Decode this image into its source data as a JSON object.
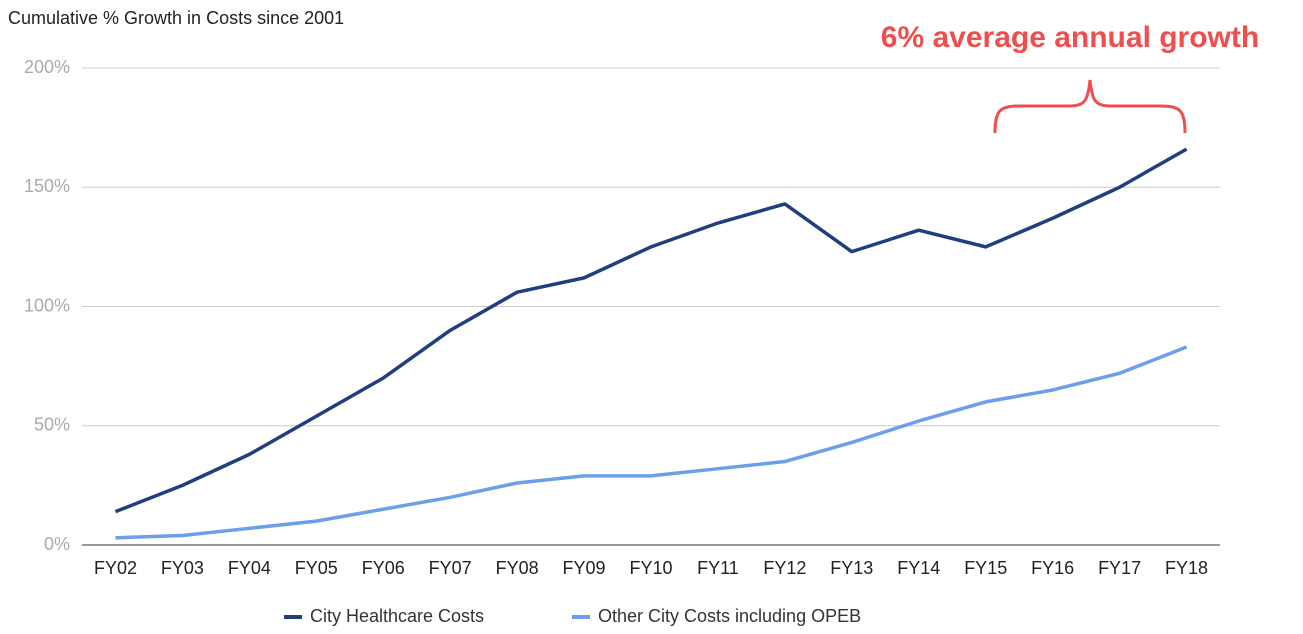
{
  "chart_data": {
    "type": "line",
    "title": "Cumulative % Growth in Costs since 2001",
    "annotation": "6% average annual growth",
    "categories": [
      "FY02",
      "FY03",
      "FY04",
      "FY05",
      "FY06",
      "FY07",
      "FY08",
      "FY09",
      "FY10",
      "FY11",
      "FY12",
      "FY13",
      "FY14",
      "FY15",
      "FY16",
      "FY17",
      "FY18"
    ],
    "series": [
      {
        "name": "City Healthcare Costs",
        "color": "#1f3f7f",
        "values": [
          14,
          25,
          38,
          54,
          70,
          90,
          106,
          112,
          125,
          135,
          143,
          123,
          132,
          125,
          137,
          150,
          166
        ]
      },
      {
        "name": "Other City Costs including OPEB",
        "color": "#6d9eeb",
        "values": [
          3,
          4,
          7,
          10,
          15,
          20,
          26,
          29,
          29,
          32,
          35,
          43,
          52,
          60,
          65,
          72,
          83
        ]
      }
    ],
    "ylim": [
      0,
      200
    ],
    "yticks": [
      {
        "value": 0,
        "label": "0%"
      },
      {
        "value": 50,
        "label": "50%"
      },
      {
        "value": 100,
        "label": "100%"
      },
      {
        "value": 150,
        "label": "150%"
      },
      {
        "value": 200,
        "label": "200%"
      }
    ],
    "grid": true
  }
}
